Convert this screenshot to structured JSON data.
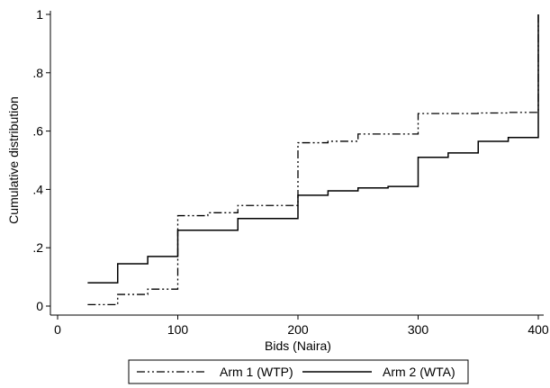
{
  "chart_data": {
    "type": "line",
    "step": true,
    "xlabel": "Bids (Naira)",
    "ylabel": "Cumulative distribution",
    "xlim": [
      0,
      400
    ],
    "ylim": [
      0,
      1
    ],
    "xticks": [
      0,
      100,
      200,
      300,
      400
    ],
    "xtick_labels": [
      "0",
      "100",
      "200",
      "300",
      "400"
    ],
    "yticks": [
      0,
      0.2,
      0.4,
      0.6,
      0.8,
      1
    ],
    "ytick_labels": [
      "0",
      ".2",
      ".4",
      ".6",
      ".8",
      "1"
    ],
    "grid": false,
    "legend_position": "bottom",
    "series": [
      {
        "name": "Arm 1 (WTP)",
        "dash": "dash-dot-dot",
        "color": "#000000",
        "x": [
          25,
          50,
          75,
          100,
          125,
          150,
          200,
          225,
          250,
          300,
          325,
          350,
          375,
          400
        ],
        "y": [
          0.005,
          0.04,
          0.058,
          0.31,
          0.32,
          0.345,
          0.56,
          0.565,
          0.59,
          0.66,
          0.66,
          0.662,
          0.664,
          1.0
        ]
      },
      {
        "name": "Arm 2 (WTA)",
        "dash": "solid",
        "color": "#000000",
        "x": [
          25,
          50,
          75,
          100,
          150,
          200,
          225,
          250,
          275,
          300,
          325,
          350,
          375,
          400
        ],
        "y": [
          0.08,
          0.145,
          0.17,
          0.26,
          0.3,
          0.38,
          0.395,
          0.405,
          0.41,
          0.51,
          0.525,
          0.565,
          0.578,
          1.0
        ]
      }
    ]
  }
}
